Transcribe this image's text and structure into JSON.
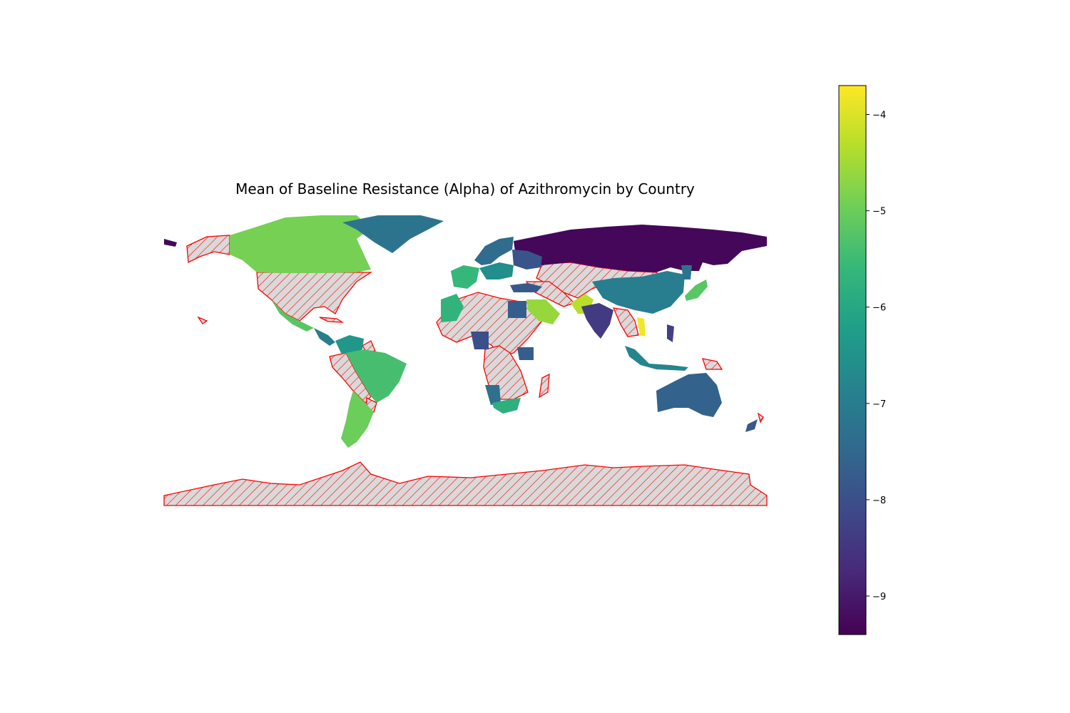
{
  "title": "Mean of Baseline Resistance (Alpha) of Azithromycin by Country",
  "colors": {
    "no_data_fill": "#d9d9d9",
    "no_data_edge": "#ff0000",
    "viridis": [
      "#440154",
      "#482878",
      "#3e4989",
      "#31688e",
      "#26828e",
      "#1f9e89",
      "#35b779",
      "#6ece58",
      "#b5de2b",
      "#fde725"
    ]
  },
  "chart_data": {
    "type": "choropleth",
    "colorbar": {
      "min": -9.4,
      "max": -3.7,
      "ticks": [
        -4,
        -5,
        -6,
        -7,
        -8,
        -9
      ],
      "tick_labels": [
        "−4",
        "−5",
        "−6",
        "−7",
        "−8",
        "−9"
      ],
      "colormap": "viridis"
    },
    "regions": [
      {
        "id": "russia",
        "value": -9.3
      },
      {
        "id": "alaska-west",
        "value": -9.3
      },
      {
        "id": "canada",
        "value": -4.9
      },
      {
        "id": "greenland",
        "value": -7.2
      },
      {
        "id": "mexico",
        "value": -5.2
      },
      {
        "id": "central-america",
        "value": -7.0
      },
      {
        "id": "colombia-venezuela",
        "value": -6.4
      },
      {
        "id": "brazil",
        "value": -5.4
      },
      {
        "id": "chile-argentina",
        "value": -5.0
      },
      {
        "id": "scandinavia",
        "value": -7.4
      },
      {
        "id": "western-europe",
        "value": -5.6
      },
      {
        "id": "central-europe",
        "value": -6.6
      },
      {
        "id": "east-europe",
        "value": -7.9
      },
      {
        "id": "turkey",
        "value": -7.8
      },
      {
        "id": "northwest-africa",
        "value": -5.7
      },
      {
        "id": "egypt",
        "value": -7.7
      },
      {
        "id": "saudi-arabia",
        "value": -4.6
      },
      {
        "id": "pakistan",
        "value": -4.3
      },
      {
        "id": "india",
        "value": -8.4
      },
      {
        "id": "china",
        "value": -7.0
      },
      {
        "id": "japan",
        "value": -5.2
      },
      {
        "id": "korea",
        "value": -7.2
      },
      {
        "id": "vietnam",
        "value": -3.8
      },
      {
        "id": "philippines",
        "value": -8.3
      },
      {
        "id": "indonesia",
        "value": -6.8
      },
      {
        "id": "australia",
        "value": -7.6
      },
      {
        "id": "new-zealand",
        "value": -7.8
      },
      {
        "id": "west-africa",
        "value": -8.0
      },
      {
        "id": "east-africa",
        "value": -7.7
      },
      {
        "id": "southern-africa",
        "value": -7.3
      },
      {
        "id": "south-africa",
        "value": -5.8
      }
    ],
    "no_data_regions": [
      "usa",
      "alaska",
      "cuba",
      "caribbean",
      "bolivia",
      "peru",
      "paraguay",
      "sahara",
      "central-africa",
      "madagascar",
      "central-asia",
      "iran",
      "middle-east",
      "mongolia",
      "southeast-asia",
      "papua",
      "antarctica",
      "new-caledonia",
      "hawaii"
    ]
  }
}
